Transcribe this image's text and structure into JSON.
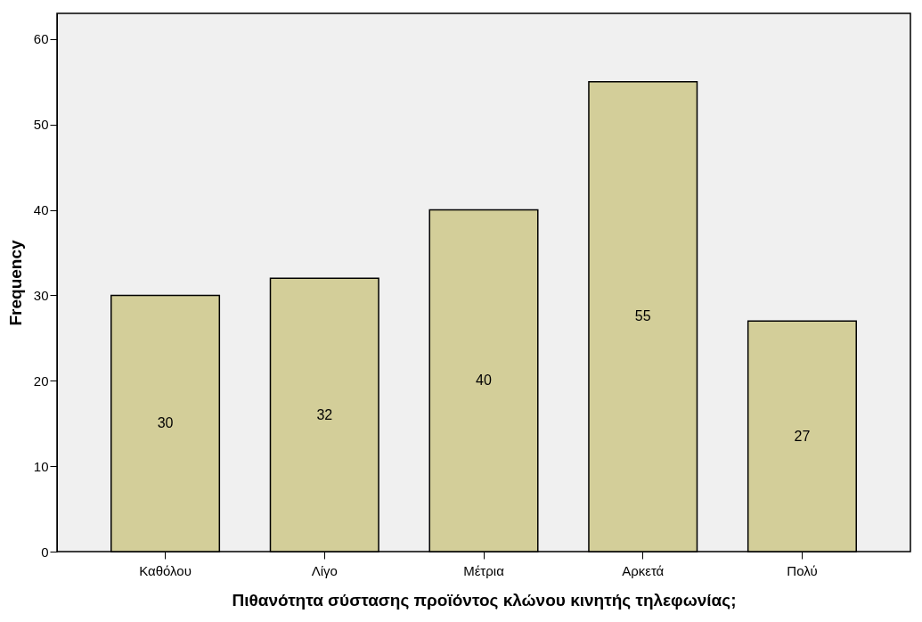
{
  "chart_data": {
    "type": "bar",
    "xlabel": "Πιθανότητα σύστασης προϊόντος κλώνου κινητής τηλεφωνίας;",
    "ylabel": "Frequency",
    "categories": [
      "Καθόλου",
      "Λίγο",
      "Μέτρια",
      "Αρκετά",
      "Πολύ"
    ],
    "values": [
      30,
      32,
      40,
      55,
      27
    ],
    "color": "#d3ce99",
    "ylim": [
      0,
      63
    ],
    "yticks": [
      0,
      10,
      20,
      30,
      40,
      50,
      60
    ],
    "grid": false,
    "data_labels": true
  }
}
